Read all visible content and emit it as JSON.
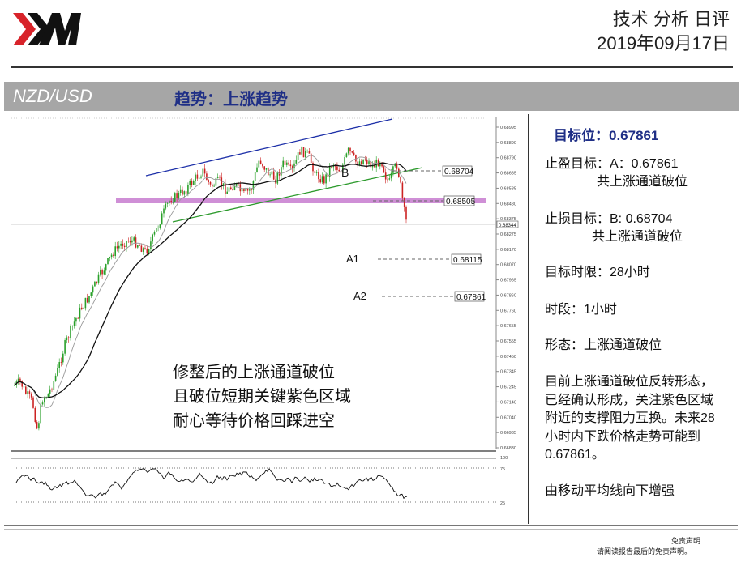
{
  "header": {
    "brand": "XM",
    "title": "技术 分析 日评",
    "date": "2019年09月17日"
  },
  "band": {
    "pair": "NZD/USD",
    "trend": "趋势：上涨趋势"
  },
  "chart": {
    "price_labels": {
      "resist_b": "0.68704",
      "purple": "0.68505",
      "a1": "0.68115",
      "a2": "0.67861",
      "current": "0.68344"
    },
    "marker_b": "B",
    "marker_a1": "A1",
    "marker_a2": "A2",
    "axis_ticks": [
      "0.68995",
      "0.68890",
      "0.68790",
      "0.68685",
      "0.68585",
      "0.68480",
      "0.68375",
      "0.68275",
      "0.68170",
      "0.68070",
      "0.67965",
      "0.67860",
      "0.67760",
      "0.67655",
      "0.67555",
      "0.67450",
      "0.67345",
      "0.67245",
      "0.67140",
      "0.67040",
      "0.66935",
      "0.66830"
    ],
    "rsi_ticks": [
      "100",
      "75",
      "25"
    ],
    "notes": [
      "修整后的上涨通道破位",
      "且破位短期关键紫色区域",
      "耐心等待价格回踩进空"
    ]
  },
  "side": {
    "target_label": "目标位：0.67861",
    "tp_line1": "止盈目标：A：0.67861",
    "tp_line2": "共上涨通道破位",
    "sl_line1": "止损目标：B: 0.68704",
    "sl_line2": "共上涨通道破位",
    "horizon": "目标时限：28小时",
    "timeframe": "时段：1小时",
    "pattern": "形态：上涨通道破位",
    "desc": [
      "目前上涨通道破位反转形态，",
      "已经确认形成，关注紫色区域",
      "附近的支撑阻力互换。未来28",
      "小时内下跌价格走势可能到",
      "0.67861。"
    ],
    "ma_note": "由移动平均线向下增强"
  },
  "footer": {
    "disclaimer_title": "免责声明",
    "disclaimer_text": "请阅读报告最后的免责声明。"
  },
  "colors": {
    "brand_red": "#d8232a",
    "band_gray": "#a6a6a6",
    "navy": "#1f2f86",
    "purple_zone": "#cf8fd6",
    "channel_blue": "#1c2fa8",
    "channel_green": "#2c9a2c",
    "candle_green": "#2aa02a",
    "candle_red": "#cc2222"
  }
}
